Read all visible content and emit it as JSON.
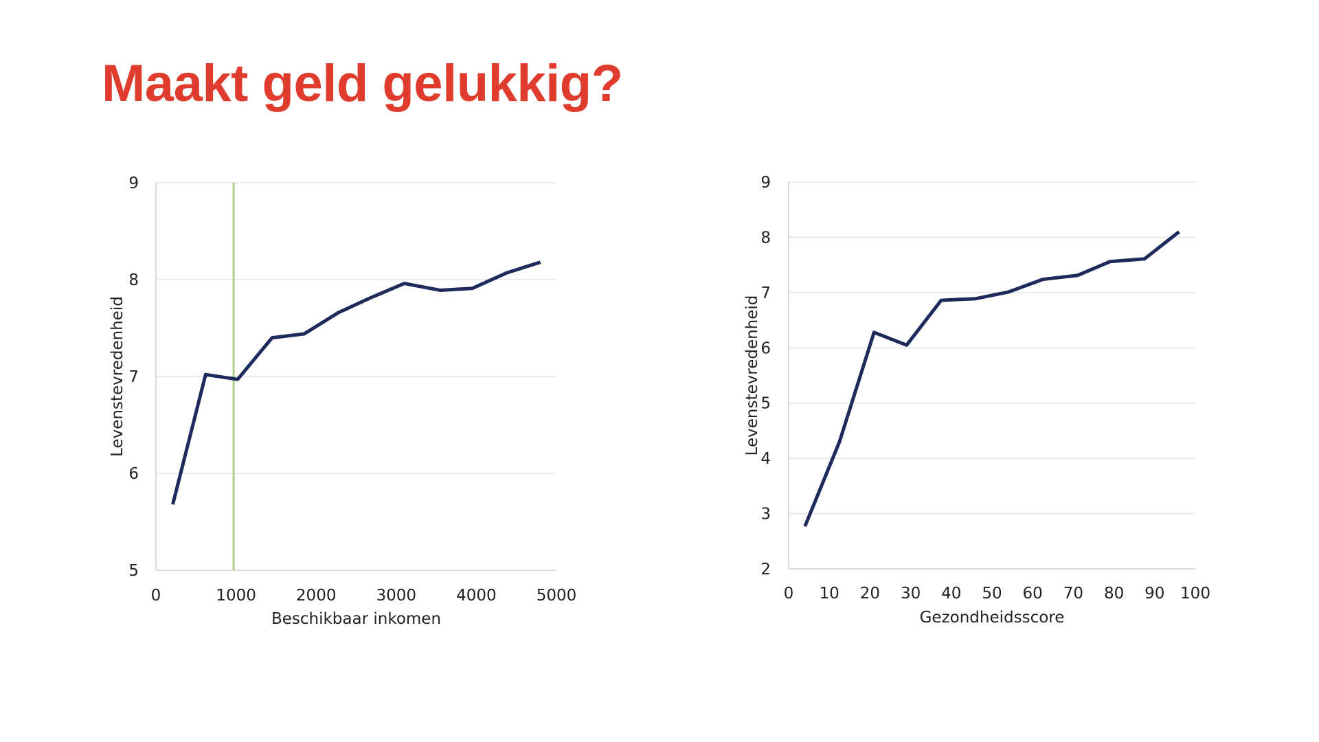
{
  "slide": {
    "title": "Maakt geld gelukkig?",
    "title_color": "#E03C2D"
  },
  "colors": {
    "series": "#1F2A5C",
    "reference_line": "#A9CF8F",
    "grid": "#E4E4E4",
    "axis": "#D0D0D0"
  },
  "chart_data": [
    {
      "type": "line",
      "xlabel": "Beschikbaar inkomen",
      "ylabel": "Levenstevredenheid",
      "xlim": [
        0,
        5000
      ],
      "ylim": [
        5,
        9
      ],
      "xticks": [
        0,
        1000,
        2000,
        3000,
        4000,
        5000
      ],
      "yticks": [
        5,
        6,
        7,
        8,
        9
      ],
      "grid": true,
      "reference_line_x": 970,
      "series": [
        {
          "x": [
            210,
            620,
            1020,
            1450,
            1850,
            2280,
            2700,
            3100,
            3550,
            3950,
            4380,
            4800
          ],
          "y": [
            5.68,
            7.02,
            6.97,
            7.4,
            7.44,
            7.66,
            7.82,
            7.96,
            7.89,
            7.91,
            8.07,
            8.18
          ]
        }
      ]
    },
    {
      "type": "line",
      "xlabel": "Gezondheidsscore",
      "ylabel": "Levenstevredenheid",
      "xlim": [
        0,
        100
      ],
      "ylim": [
        2,
        9
      ],
      "xticks": [
        0,
        10,
        20,
        30,
        40,
        50,
        60,
        70,
        80,
        90,
        100
      ],
      "yticks": [
        2,
        3,
        4,
        5,
        6,
        7,
        8,
        9
      ],
      "grid": true,
      "series": [
        {
          "x": [
            4,
            12.5,
            21,
            29,
            37.5,
            46,
            54,
            62.5,
            71,
            79,
            87.5,
            96
          ],
          "y": [
            2.77,
            4.3,
            6.28,
            6.05,
            6.86,
            6.89,
            7.01,
            7.24,
            7.31,
            7.56,
            7.61,
            8.1
          ]
        }
      ]
    }
  ]
}
